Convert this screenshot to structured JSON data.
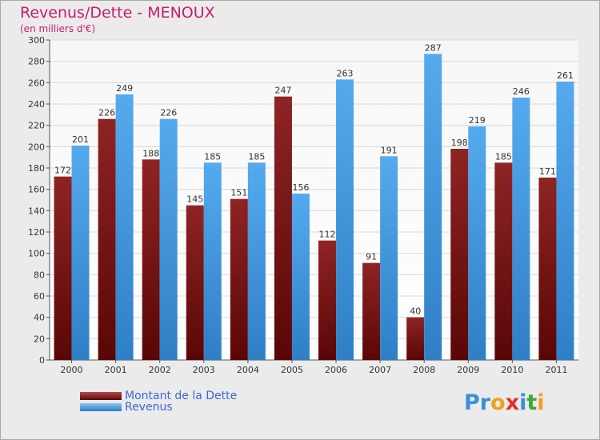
{
  "chart_data": {
    "type": "bar",
    "title": "Revenus/Dette - MENOUX",
    "subtitle": "(en milliers d'€)",
    "categories": [
      "2000",
      "2001",
      "2002",
      "2003",
      "2004",
      "2005",
      "2006",
      "2007",
      "2008",
      "2009",
      "2010",
      "2011"
    ],
    "series": [
      {
        "name": "Montant de la Dette",
        "color": "#7a1111",
        "values": [
          172,
          226,
          188,
          145,
          151,
          247,
          112,
          91,
          40,
          198,
          185,
          171
        ]
      },
      {
        "name": "Revenus",
        "color": "#4a9de3",
        "values": [
          201,
          249,
          226,
          185,
          185,
          156,
          263,
          191,
          287,
          219,
          246,
          261
        ]
      }
    ],
    "ylim": [
      0,
      300
    ],
    "yticks": [
      0,
      20,
      40,
      60,
      80,
      100,
      120,
      140,
      160,
      180,
      200,
      220,
      240,
      260,
      280,
      300
    ],
    "grid": true,
    "legend": "bottom-left"
  },
  "logo": {
    "text": "Proxiti",
    "letters": [
      {
        "ch": "P",
        "color": "#3a8fd6"
      },
      {
        "ch": "r",
        "color": "#3a8fd6"
      },
      {
        "ch": "o",
        "color": "#f0a020"
      },
      {
        "ch": "x",
        "color": "#e0302a"
      },
      {
        "ch": "i",
        "color": "#3a8fd6"
      },
      {
        "ch": "t",
        "color": "#3aa83a"
      },
      {
        "ch": "i",
        "color": "#f0a020"
      }
    ]
  }
}
